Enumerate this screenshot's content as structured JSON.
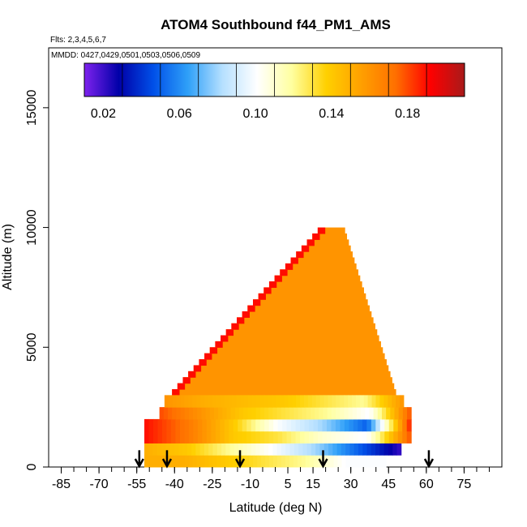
{
  "chart_data": {
    "type": "heatmap",
    "title": "ATOM4 Southbound f44_PM1_AMS",
    "subtitle": "Flts: 2,3,4,5,6,7",
    "annotation": "MMDD: 0427,0429,0501,0503,0506,0509",
    "xlabel": "Latitude (deg N)",
    "ylabel": "Altitude (m)",
    "xlim": [
      -90,
      90
    ],
    "ylim": [
      0,
      17500
    ],
    "xticks": [
      -85,
      -70,
      -55,
      -40,
      -25,
      -10,
      5,
      15,
      30,
      45,
      60,
      75
    ],
    "xtick_labels": [
      "-85",
      "-70",
      "-55",
      "-40",
      "-25",
      "-10",
      "5",
      "15",
      "30",
      "45",
      "60",
      "75"
    ],
    "yticks": [
      0,
      5000,
      10000,
      15000
    ],
    "ytick_labels": [
      "0",
      "5000",
      "10000",
      "15000"
    ],
    "colorbar": {
      "range": [
        0.01,
        0.21
      ],
      "ticks": [
        0.02,
        0.06,
        0.1,
        0.14,
        0.18
      ],
      "tick_labels": [
        "0.02",
        "0.06",
        "0.10",
        "0.14",
        "0.18"
      ],
      "stops": [
        "#7e22ee",
        "#0000a8",
        "#0050e8",
        "#2fa0f8",
        "#b6e0ff",
        "#ffffff",
        "#ffffa0",
        "#ffd000",
        "#ffa000",
        "#ff7000",
        "#ff0000",
        "#a81a1a"
      ]
    },
    "low_altitude_bands": [
      {
        "alt": [
          0,
          500
        ],
        "lat": [
          -52,
          44
        ],
        "values": [
          0.15,
          0.15,
          0.14,
          0.13,
          0.12,
          0.1,
          0.1
        ]
      },
      {
        "alt": [
          500,
          1000
        ],
        "lat": [
          -52,
          50
        ],
        "values": [
          0.15,
          0.14,
          0.12,
          0.1,
          0.08,
          0.05,
          0.02
        ]
      },
      {
        "alt": [
          1000,
          1500
        ],
        "lat": [
          -52,
          54
        ],
        "values": [
          0.19,
          0.17,
          0.14,
          0.13,
          0.11,
          0.1,
          0.18
        ]
      },
      {
        "alt": [
          1500,
          2000
        ],
        "lat": [
          -52,
          54
        ],
        "values": [
          0.19,
          0.17,
          0.14,
          0.1,
          0.08,
          0.05,
          0.19
        ]
      },
      {
        "alt": [
          2000,
          2500
        ],
        "lat": [
          -46,
          54
        ],
        "values": [
          0.18,
          0.16,
          0.14,
          0.13,
          0.12,
          0.1,
          0.18
        ]
      },
      {
        "alt": [
          2500,
          3000
        ],
        "lat": [
          -44,
          51
        ],
        "values": [
          0.16,
          0.15,
          0.145,
          0.14,
          0.13,
          0.12,
          0.16
        ]
      }
    ],
    "upper_profile": {
      "alt_range": [
        3000,
        10000
      ],
      "value": 0.16,
      "southern_edge_value": 0.19,
      "north_lat": 25,
      "south_boundary": [
        [
          3000,
          -41
        ],
        [
          10000,
          19
        ]
      ],
      "north_boundary": [
        [
          3000,
          48
        ],
        [
          10000,
          27
        ]
      ]
    },
    "profile_latitudes": [
      -54,
      -43,
      -14,
      19,
      61
    ]
  }
}
